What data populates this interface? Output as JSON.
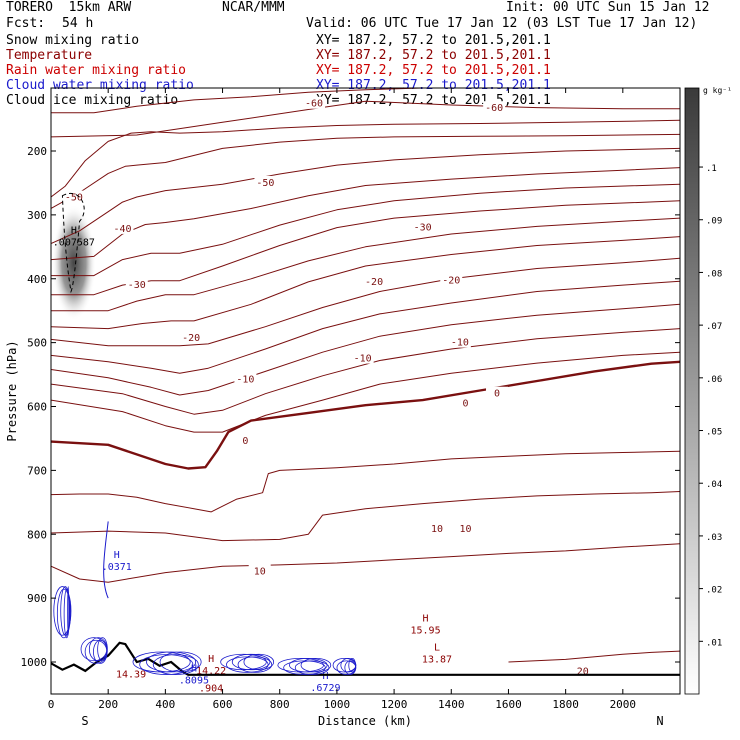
{
  "header": {
    "model": "TORERO  15km ARW",
    "center": "NCAR/MMM",
    "init": "Init: 00 UTC Sun 15 Jan 12",
    "fcst_label": "Fcst:",
    "fcst_value": "54 h",
    "valid": "Valid: 06 UTC Tue 17 Jan 12 (03 LST Tue 17 Jan 12)"
  },
  "fields": [
    {
      "name": "Snow mixing ratio",
      "xy": "XY= 187.2, 57.2 to 201.5,201.1",
      "color": "#000000"
    },
    {
      "name": "Temperature",
      "xy": "XY= 187.2, 57.2 to 201.5,201.1",
      "color": "#8b0000"
    },
    {
      "name": "Rain water mixing ratio",
      "xy": "XY= 187.2, 57.2 to 201.5,201.1",
      "color": "#cc0000"
    },
    {
      "name": "Cloud water mixing ratio",
      "xy": "XY= 187.2, 57.2 to 201.5,201.1",
      "color": "#1a1acc"
    },
    {
      "name": "Cloud ice mixing ratio",
      "xy": "XY= 187.2, 57.2 to 201.5,201.1",
      "color": "#000000"
    }
  ],
  "chart_data": {
    "type": "contour",
    "xlabel": "Distance (km)",
    "ylabel": "Pressure (hPa)",
    "x_ticks": [
      0,
      200,
      400,
      600,
      800,
      1000,
      1200,
      1400,
      1600,
      1800,
      2000
    ],
    "y_ticks": [
      200,
      300,
      400,
      500,
      600,
      700,
      800,
      900,
      1000
    ],
    "xlim": [
      0,
      2200
    ],
    "ylim": [
      1050,
      100
    ],
    "x_end_labels": {
      "left": "S",
      "right": "N"
    },
    "colorbar": {
      "unit": "g kg⁻¹",
      "ticks": [
        "0.01",
        "0.02",
        "0.03",
        "0.04",
        "0.05",
        "0.06",
        "0.07",
        "0.08",
        "0.09",
        "0.1"
      ],
      "tick_labels": [
        ".01",
        ".02",
        ".03",
        ".04",
        ".05",
        ".06",
        ".07",
        ".08",
        ".09",
        ".1"
      ]
    },
    "temperature_contours": [
      {
        "level": -60,
        "x": [
          0,
          150,
          300,
          500,
          700,
          900,
          1100,
          1400,
          1700,
          2000,
          2200
        ],
        "p": [
          140,
          140,
          130,
          120,
          115,
          108,
          104,
          100,
          96,
          92,
          90
        ]
      },
      {
        "level": -60,
        "x": [
          0,
          300,
          600,
          900,
          1100,
          1400,
          1700,
          2000,
          2200
        ],
        "p": [
          178,
          175,
          155,
          135,
          122,
          128,
          132,
          134,
          134
        ]
      },
      {
        "level": -50,
        "x": [
          0,
          50,
          120,
          200,
          280,
          350,
          450,
          600,
          800,
          1000,
          1200,
          1500,
          1800,
          2200
        ],
        "p": [
          272,
          255,
          215,
          185,
          172,
          170,
          172,
          170,
          164,
          160,
          158,
          157,
          155,
          152
        ]
      },
      {
        "level": -50,
        "x": [
          0,
          100,
          200,
          260,
          300,
          400,
          600,
          800,
          1000,
          1200,
          1500,
          1800,
          2200
        ],
        "p": [
          290,
          265,
          235,
          224,
          222,
          218,
          196,
          186,
          180,
          178,
          177,
          176,
          174
        ]
      },
      {
        "level": -40,
        "x": [
          0,
          100,
          200,
          250,
          300,
          400,
          600,
          800,
          1000,
          1200,
          1500,
          1800,
          2200
        ],
        "p": [
          345,
          325,
          295,
          280,
          272,
          262,
          252,
          236,
          222,
          214,
          206,
          200,
          196
        ]
      },
      {
        "level": -40,
        "x": [
          0,
          150,
          250,
          330,
          400,
          500,
          700,
          900,
          1100,
          1400,
          1700,
          2000,
          2200
        ],
        "p": [
          370,
          365,
          330,
          315,
          312,
          306,
          290,
          270,
          254,
          244,
          236,
          230,
          226
        ]
      },
      {
        "level": -30,
        "x": [
          0,
          150,
          250,
          350,
          450,
          600,
          800,
          1000,
          1200,
          1500,
          1800,
          2200
        ],
        "p": [
          395,
          395,
          370,
          360,
          360,
          346,
          316,
          292,
          278,
          266,
          258,
          252
        ]
      },
      {
        "level": -30,
        "x": [
          0,
          150,
          250,
          350,
          450,
          600,
          800,
          1000,
          1200,
          1500,
          1800,
          2200
        ],
        "p": [
          425,
          425,
          410,
          403,
          403,
          380,
          348,
          320,
          305,
          294,
          285,
          278
        ]
      },
      {
        "level": -20,
        "x": [
          0,
          200,
          300,
          400,
          500,
          700,
          900,
          1100,
          1400,
          1700,
          2000,
          2200
        ],
        "p": [
          450,
          450,
          435,
          425,
          425,
          400,
          372,
          350,
          330,
          318,
          310,
          305
        ]
      },
      {
        "level": -20,
        "x": [
          0,
          200,
          320,
          420,
          500,
          700,
          900,
          1100,
          1400,
          1700,
          2000,
          2200
        ],
        "p": [
          475,
          478,
          470,
          466,
          466,
          440,
          405,
          380,
          362,
          348,
          340,
          334
        ]
      },
      {
        "level": -20,
        "x": [
          0,
          200,
          350,
          450,
          550,
          750,
          950,
          1150,
          1400,
          1700,
          2000,
          2200
        ],
        "p": [
          495,
          505,
          505,
          505,
          502,
          475,
          445,
          420,
          400,
          384,
          375,
          368
        ]
      },
      {
        "level": -10,
        "x": [
          0,
          200,
          350,
          450,
          550,
          750,
          950,
          1150,
          1400,
          1700,
          2000,
          2200
        ],
        "p": [
          520,
          530,
          540,
          548,
          540,
          510,
          478,
          455,
          438,
          420,
          410,
          404
        ]
      },
      {
        "level": -10,
        "x": [
          0,
          200,
          350,
          450,
          550,
          750,
          950,
          1150,
          1400,
          1700,
          2000,
          2200
        ],
        "p": [
          542,
          555,
          570,
          582,
          575,
          545,
          515,
          490,
          472,
          457,
          447,
          440
        ]
      },
      {
        "level": -10,
        "x": [
          0,
          250,
          400,
          500,
          600,
          750,
          950,
          1150,
          1400,
          1700,
          2000,
          2200
        ],
        "p": [
          565,
          580,
          600,
          612,
          606,
          580,
          552,
          528,
          510,
          494,
          484,
          478
        ]
      },
      {
        "level": -10,
        "x": [
          0,
          250,
          400,
          500,
          600,
          750,
          950,
          1150,
          1400,
          1700,
          2000,
          2200
        ],
        "p": [
          590,
          608,
          630,
          640,
          640,
          614,
          590,
          565,
          548,
          532,
          520,
          515
        ]
      },
      {
        "level": 0,
        "x": [
          0,
          200,
          400,
          480,
          540,
          580,
          620,
          700,
          900,
          1100,
          1300,
          1500,
          1700,
          1900,
          2100,
          2200
        ],
        "p": [
          655,
          660,
          690,
          697,
          695,
          670,
          640,
          622,
          610,
          598,
          590,
          575,
          560,
          545,
          533,
          530
        ]
      },
      {
        "level": 10,
        "x": [
          0,
          100,
          200,
          300,
          400,
          500,
          560,
          650,
          740,
          760,
          800,
          1000,
          1200,
          1400,
          1600,
          1800,
          2000,
          2200
        ],
        "p": [
          738,
          737,
          737,
          742,
          752,
          760,
          765,
          745,
          735,
          705,
          700,
          696,
          690,
          682,
          678,
          674,
          672,
          670
        ]
      },
      {
        "level": 10,
        "x": [
          0,
          200,
          400,
          600,
          800,
          900,
          950,
          1100,
          1300,
          1500,
          1700,
          1900,
          2100,
          2200
        ],
        "p": [
          798,
          795,
          798,
          810,
          808,
          800,
          770,
          760,
          752,
          745,
          740,
          737,
          735,
          733
        ]
      },
      {
        "level": 10,
        "x": [
          0,
          100,
          200,
          400,
          600,
          800,
          1000,
          1200,
          1400,
          1600,
          1800,
          2000,
          2200
        ],
        "p": [
          850,
          870,
          875,
          860,
          850,
          848,
          845,
          840,
          835,
          830,
          826,
          820,
          815
        ]
      },
      {
        "level": 20,
        "x": [
          1600,
          1800,
          2000,
          2100,
          2200
        ],
        "p": [
          1000,
          996,
          988,
          985,
          983
        ]
      }
    ],
    "temperature_labels": [
      {
        "text": "-60",
        "x": 920,
        "p": 126
      },
      {
        "text": "-60",
        "x": 1550,
        "p": 133
      },
      {
        "text": "-50",
        "x": 80,
        "p": 273
      },
      {
        "text": "-50",
        "x": 750,
        "p": 250
      },
      {
        "text": "-40",
        "x": 250,
        "p": 322
      },
      {
        "text": "-30",
        "x": 1300,
        "p": 320
      },
      {
        "text": "-30",
        "x": 300,
        "p": 410
      },
      {
        "text": "-20",
        "x": 1130,
        "p": 405
      },
      {
        "text": "-20",
        "x": 1400,
        "p": 403
      },
      {
        "text": "-20",
        "x": 490,
        "p": 493
      },
      {
        "text": "-10",
        "x": 1090,
        "p": 525
      },
      {
        "text": "-10",
        "x": 1430,
        "p": 500
      },
      {
        "text": "-10",
        "x": 680,
        "p": 558
      },
      {
        "text": "0",
        "x": 680,
        "p": 654
      },
      {
        "text": "0",
        "x": 1450,
        "p": 595
      },
      {
        "text": "0",
        "x": 1560,
        "p": 580
      },
      {
        "text": "10",
        "x": 1350,
        "p": 792
      },
      {
        "text": "10",
        "x": 1450,
        "p": 792
      },
      {
        "text": "10",
        "x": 730,
        "p": 858
      },
      {
        "text": "20",
        "x": 1860,
        "p": 1015
      }
    ],
    "extrema": [
      {
        "type": "H",
        "value": ".007587",
        "x": 80,
        "p": 332,
        "color": "#000000"
      },
      {
        "type": "H",
        "value": ".0371",
        "x": 230,
        "p": 840,
        "color": "#1a1acc"
      },
      {
        "type": "H",
        "value": "15.95",
        "x": 1310,
        "p": 940,
        "color": "#8b0000"
      },
      {
        "type": "L",
        "value": "13.87",
        "x": 1350,
        "p": 985,
        "color": "#8b0000"
      },
      {
        "type": "H",
        "value": "14.22",
        "x": 560,
        "p": 1003,
        "color": "#8b0000"
      },
      {
        "type": "H",
        "value": ".8095",
        "x": 500,
        "p": 1018,
        "color": "#1a1acc"
      },
      {
        "type": "H",
        "value": ".6729",
        "x": 960,
        "p": 1030,
        "color": "#1a1acc"
      },
      {
        "type": "",
        "value": "14.39",
        "x": 280,
        "p": 1018,
        "color": "#8b0000"
      },
      {
        "type": "",
        "value": ".904",
        "x": 560,
        "p": 1040,
        "color": "#8b0000"
      }
    ],
    "snow_shading": {
      "x": 80,
      "p": 375,
      "peak_gkg": 0.09
    }
  }
}
